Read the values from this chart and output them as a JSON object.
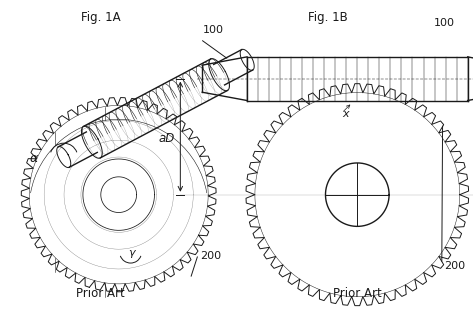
{
  "fig_title_A": "Fig. 1A",
  "fig_title_B": "Fig. 1B",
  "label_100_A": "100",
  "label_200_A": "200",
  "label_alpha": "α",
  "label_gamma": "γ",
  "label_100_B": "100",
  "label_200_B": "200",
  "label_aD": "aD",
  "label_x": "x",
  "prior_art": "Prior Art",
  "line_color": "#1a1a1a",
  "fig_width": 4.74,
  "fig_height": 3.14,
  "dpi": 100
}
